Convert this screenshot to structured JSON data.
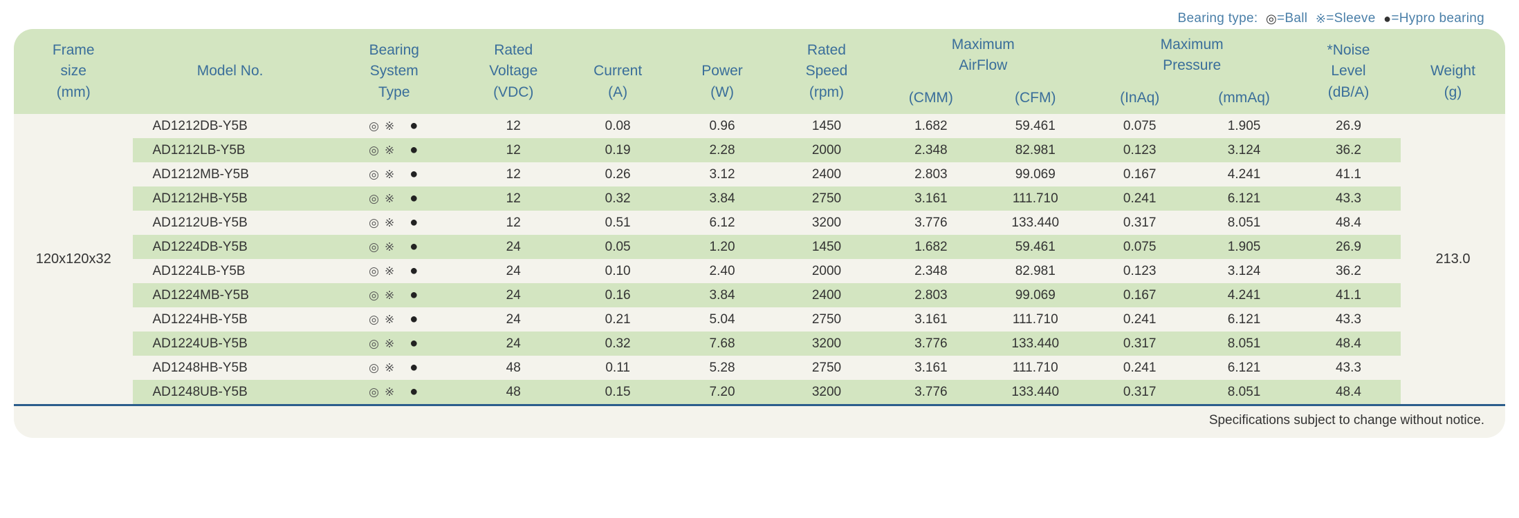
{
  "legend": {
    "label": "Bearing type:",
    "items": [
      {
        "symbol": "◎",
        "text": "=Ball"
      },
      {
        "symbol": "※",
        "text": "=Sleeve"
      },
      {
        "symbol": "●",
        "text": "=Hypro bearing"
      }
    ]
  },
  "headers": {
    "frame": {
      "l1": "Frame",
      "l2": "size",
      "l3": "(mm)"
    },
    "model": {
      "l1": "Model No."
    },
    "bearing": {
      "l1": "Bearing",
      "l2": "System",
      "l3": "Type"
    },
    "voltage": {
      "l1": "Rated",
      "l2": "Voltage",
      "l3": "(VDC)"
    },
    "current": {
      "l1": "Current",
      "l2": "(A)"
    },
    "power": {
      "l1": "Power",
      "l2": "(W)"
    },
    "speed": {
      "l1": "Rated",
      "l2": "Speed",
      "l3": "(rpm)"
    },
    "airflow": {
      "l1": "Maximum",
      "l2": "AirFlow"
    },
    "airflow_cmm": "(CMM)",
    "airflow_cfm": "(CFM)",
    "pressure": {
      "l1": "Maximum",
      "l2": "Pressure"
    },
    "pressure_inaq": "(InAq)",
    "pressure_mmaq": "(mmAq)",
    "noise": {
      "l1": "*Noise",
      "l2": "Level",
      "l3": "(dB/A)"
    },
    "weight": {
      "l1": "Weight",
      "l2": "(g)"
    }
  },
  "frame_size": "120x120x32",
  "weight_g": "213.0",
  "bearing_symbols": {
    "ball": "◎",
    "sleeve": "※",
    "hypro": "●"
  },
  "rows": [
    {
      "model": "AD1212DB-Y5B",
      "voltage": "12",
      "current": "0.08",
      "power": "0.96",
      "speed": "1450",
      "cmm": "1.682",
      "cfm": "59.461",
      "inaq": "0.075",
      "mmaq": "1.905",
      "noise": "26.9"
    },
    {
      "model": "AD1212LB-Y5B",
      "voltage": "12",
      "current": "0.19",
      "power": "2.28",
      "speed": "2000",
      "cmm": "2.348",
      "cfm": "82.981",
      "inaq": "0.123",
      "mmaq": "3.124",
      "noise": "36.2"
    },
    {
      "model": "AD1212MB-Y5B",
      "voltage": "12",
      "current": "0.26",
      "power": "3.12",
      "speed": "2400",
      "cmm": "2.803",
      "cfm": "99.069",
      "inaq": "0.167",
      "mmaq": "4.241",
      "noise": "41.1"
    },
    {
      "model": "AD1212HB-Y5B",
      "voltage": "12",
      "current": "0.32",
      "power": "3.84",
      "speed": "2750",
      "cmm": "3.161",
      "cfm": "111.710",
      "inaq": "0.241",
      "mmaq": "6.121",
      "noise": "43.3"
    },
    {
      "model": "AD1212UB-Y5B",
      "voltage": "12",
      "current": "0.51",
      "power": "6.12",
      "speed": "3200",
      "cmm": "3.776",
      "cfm": "133.440",
      "inaq": "0.317",
      "mmaq": "8.051",
      "noise": "48.4"
    },
    {
      "model": "AD1224DB-Y5B",
      "voltage": "24",
      "current": "0.05",
      "power": "1.20",
      "speed": "1450",
      "cmm": "1.682",
      "cfm": "59.461",
      "inaq": "0.075",
      "mmaq": "1.905",
      "noise": "26.9"
    },
    {
      "model": "AD1224LB-Y5B",
      "voltage": "24",
      "current": "0.10",
      "power": "2.40",
      "speed": "2000",
      "cmm": "2.348",
      "cfm": "82.981",
      "inaq": "0.123",
      "mmaq": "3.124",
      "noise": "36.2"
    },
    {
      "model": "AD1224MB-Y5B",
      "voltage": "24",
      "current": "0.16",
      "power": "3.84",
      "speed": "2400",
      "cmm": "2.803",
      "cfm": "99.069",
      "inaq": "0.167",
      "mmaq": "4.241",
      "noise": "41.1"
    },
    {
      "model": "AD1224HB-Y5B",
      "voltage": "24",
      "current": "0.21",
      "power": "5.04",
      "speed": "2750",
      "cmm": "3.161",
      "cfm": "111.710",
      "inaq": "0.241",
      "mmaq": "6.121",
      "noise": "43.3"
    },
    {
      "model": "AD1224UB-Y5B",
      "voltage": "24",
      "current": "0.32",
      "power": "7.68",
      "speed": "3200",
      "cmm": "3.776",
      "cfm": "133.440",
      "inaq": "0.317",
      "mmaq": "8.051",
      "noise": "48.4"
    },
    {
      "model": "AD1248HB-Y5B",
      "voltage": "48",
      "current": "0.11",
      "power": "5.28",
      "speed": "2750",
      "cmm": "3.161",
      "cfm": "111.710",
      "inaq": "0.241",
      "mmaq": "6.121",
      "noise": "43.3"
    },
    {
      "model": "AD1248UB-Y5B",
      "voltage": "48",
      "current": "0.15",
      "power": "7.20",
      "speed": "3200",
      "cmm": "3.776",
      "cfm": "133.440",
      "inaq": "0.317",
      "mmaq": "8.051",
      "noise": "48.4"
    }
  ],
  "footnote": "Specifications subject to change without notice.",
  "colors": {
    "header_bg": "#d3e5c1",
    "body_bg": "#f4f3ec",
    "header_text": "#3a6e9a",
    "rule": "#2b5d8c",
    "body_text": "#333333"
  },
  "columns": [
    {
      "key": "frame",
      "width": "8%"
    },
    {
      "key": "model",
      "width": "13%"
    },
    {
      "key": "bearing",
      "width": "9%"
    },
    {
      "key": "voltage",
      "width": "7%"
    },
    {
      "key": "current",
      "width": "7%"
    },
    {
      "key": "power",
      "width": "7%"
    },
    {
      "key": "speed",
      "width": "7%"
    },
    {
      "key": "cmm",
      "width": "7%"
    },
    {
      "key": "cfm",
      "width": "7%"
    },
    {
      "key": "inaq",
      "width": "7%"
    },
    {
      "key": "mmaq",
      "width": "7%"
    },
    {
      "key": "noise",
      "width": "7%"
    },
    {
      "key": "weight",
      "width": "7%"
    }
  ]
}
